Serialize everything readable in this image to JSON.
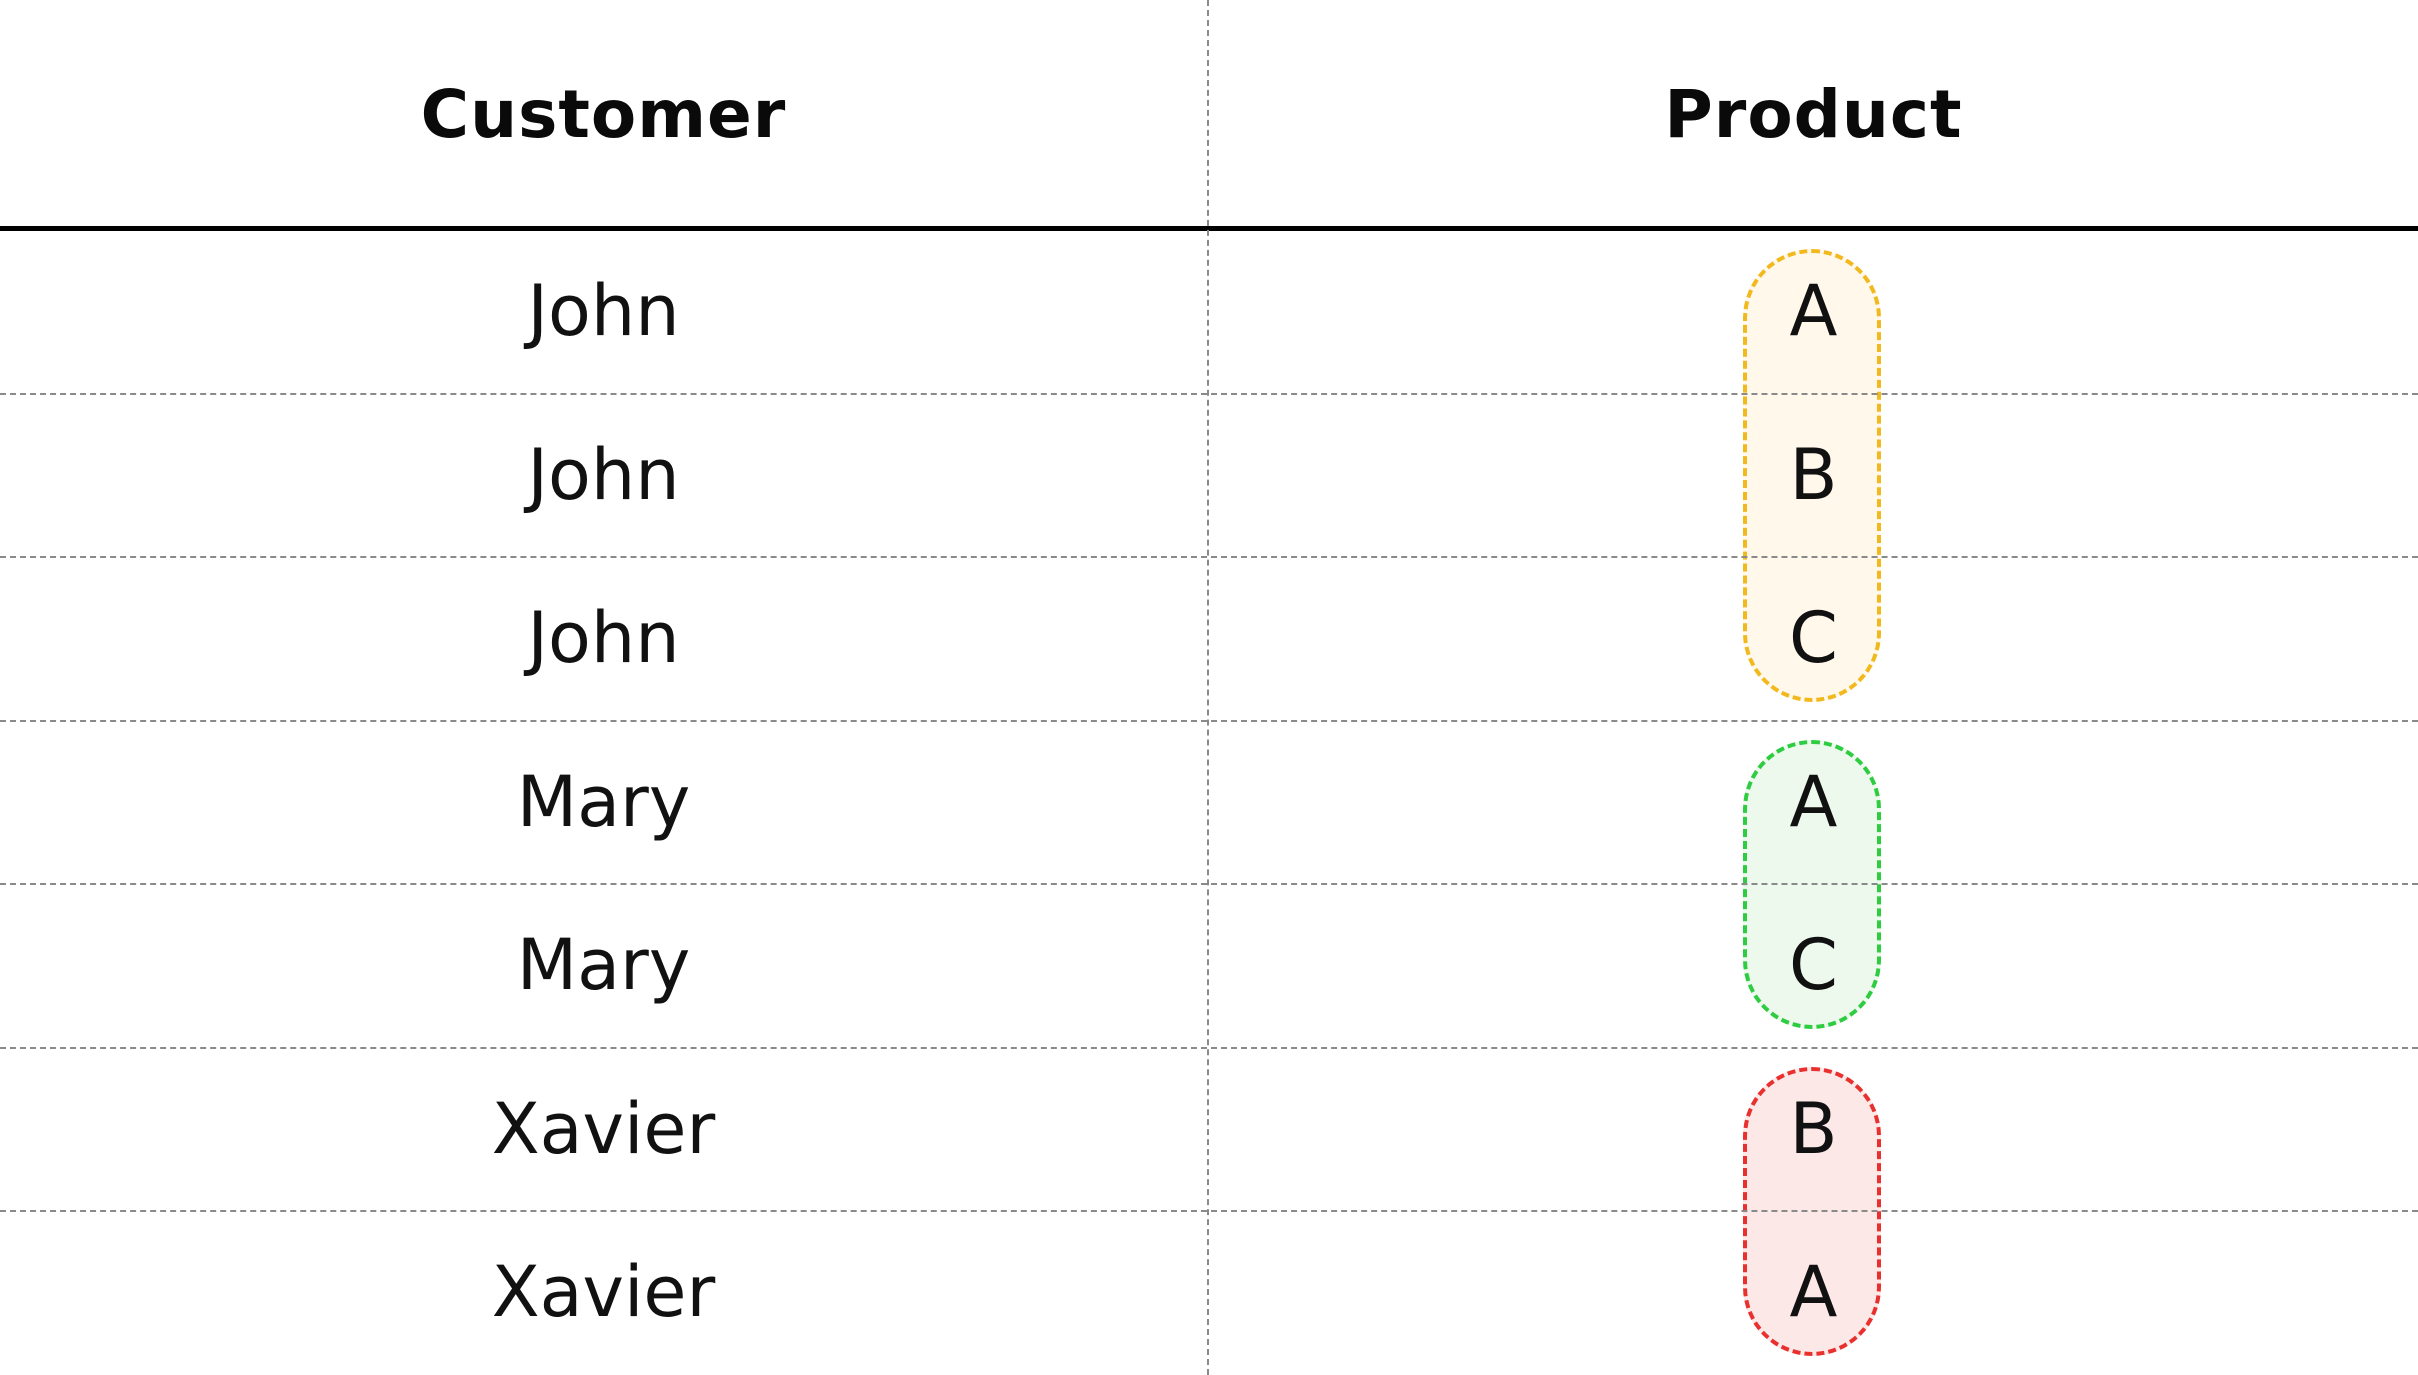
{
  "table": {
    "columns": [
      "Customer",
      "Product"
    ],
    "rows": [
      {
        "customer": "John",
        "product": "A"
      },
      {
        "customer": "John",
        "product": "B"
      },
      {
        "customer": "John",
        "product": "C"
      },
      {
        "customer": "Mary",
        "product": "A"
      },
      {
        "customer": "Mary",
        "product": "C"
      },
      {
        "customer": "Xavier",
        "product": "B"
      },
      {
        "customer": "Xavier",
        "product": "A"
      }
    ]
  },
  "groups": [
    {
      "customer": "John",
      "first_row": 0,
      "last_row": 2,
      "border_color": "#f2b91e",
      "fill_color": "#fff8eb"
    },
    {
      "customer": "Mary",
      "first_row": 3,
      "last_row": 4,
      "border_color": "#2ecc40",
      "fill_color": "#edf9ed"
    },
    {
      "customer": "Xavier",
      "first_row": 5,
      "last_row": 6,
      "border_color": "#e8302e",
      "fill_color": "#fde8e8"
    }
  ]
}
